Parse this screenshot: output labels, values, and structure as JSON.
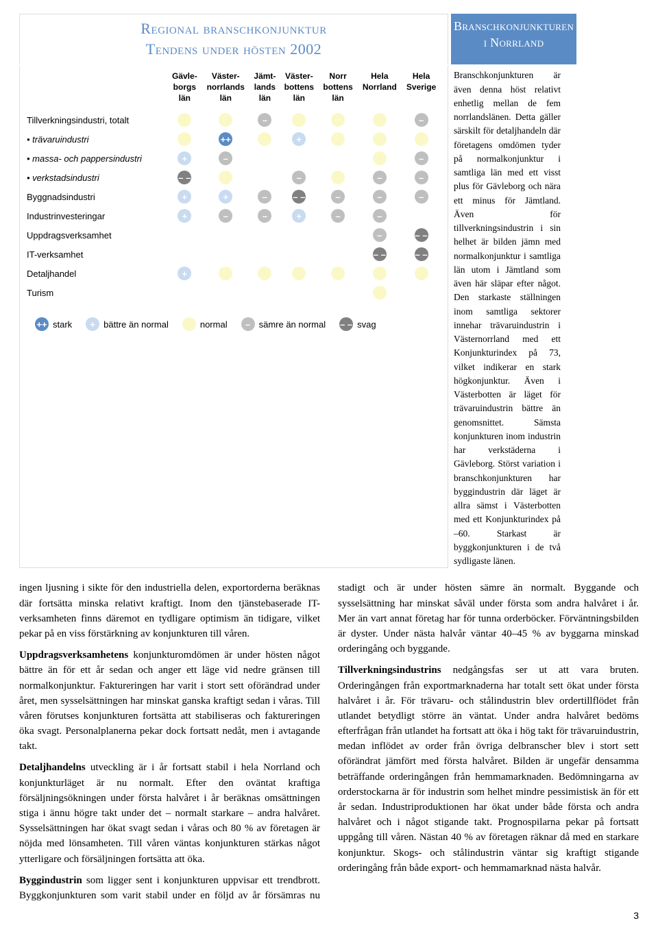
{
  "header_main_line1": "Regional branschkonjunktur",
  "header_main_line2": "Tendens under hösten 2002",
  "header_side_line1": "Branschkonjunkturen",
  "header_side_line2": "i Norrland",
  "table": {
    "columns": [
      {
        "l1": "Gävle-",
        "l2": "borgs",
        "l3": "län"
      },
      {
        "l1": "Väster-",
        "l2": "norrlands",
        "l3": "län"
      },
      {
        "l1": "Jämt-",
        "l2": "lands",
        "l3": "län"
      },
      {
        "l1": "Väster-",
        "l2": "bottens",
        "l3": "län"
      },
      {
        "l1": "Norr",
        "l2": "bottens",
        "l3": "län"
      },
      {
        "l1": "Hela",
        "l2": "Norrland",
        "l3": ""
      },
      {
        "l1": "Hela",
        "l2": "Sverige",
        "l3": ""
      }
    ],
    "rows": [
      {
        "label": "Tillverkningsindustri, totalt",
        "italic": false,
        "cells": [
          "normal",
          "normal",
          "samre",
          "normal",
          "normal",
          "normal",
          "samre"
        ]
      },
      {
        "label": "• trävaruindustri",
        "italic": true,
        "cells": [
          "normal",
          "stark",
          "normal",
          "battre",
          "normal",
          "normal",
          "normal"
        ]
      },
      {
        "label": "• massa- och pappersindustri",
        "italic": true,
        "cells": [
          "battre",
          "samre",
          "",
          "",
          "",
          "normal",
          "samre"
        ]
      },
      {
        "label": "• verkstadsindustri",
        "italic": true,
        "cells": [
          "svag",
          "normal",
          "",
          "samre",
          "normal",
          "samre",
          "samre"
        ]
      },
      {
        "label": "Byggnadsindustri",
        "italic": false,
        "cells": [
          "battre",
          "battre",
          "samre",
          "svag",
          "samre",
          "samre",
          "samre"
        ]
      },
      {
        "label": "Industrinvesteringar",
        "italic": false,
        "cells": [
          "battre",
          "samre",
          "samre",
          "battre",
          "samre",
          "samre",
          ""
        ]
      },
      {
        "label": "Uppdragsverksamhet",
        "italic": false,
        "cells": [
          "",
          "",
          "",
          "",
          "",
          "samre",
          "svag"
        ]
      },
      {
        "label": "IT-verksamhet",
        "italic": false,
        "cells": [
          "",
          "",
          "",
          "",
          "",
          "svag",
          "svag"
        ]
      },
      {
        "label": "Detaljhandel",
        "italic": false,
        "cells": [
          "battre",
          "normal",
          "normal",
          "normal",
          "normal",
          "normal",
          "normal"
        ]
      },
      {
        "label": "Turism",
        "italic": false,
        "cells": [
          "",
          "",
          "",
          "",
          "",
          "normal",
          ""
        ]
      }
    ]
  },
  "legend": {
    "items": [
      {
        "level": "stark",
        "label": "stark"
      },
      {
        "level": "battre",
        "label": "bättre än normal"
      },
      {
        "level": "normal",
        "label": "normal"
      },
      {
        "level": "samre",
        "label": "sämre än normal"
      },
      {
        "level": "svag",
        "label": "svag"
      }
    ]
  },
  "glyphs": {
    "stark": "++",
    "battre": "+",
    "normal": "",
    "samre": "–",
    "svag": "– –"
  },
  "colors": {
    "accent": "#5a8bc5",
    "stark": "#5a8bc5",
    "battre": "#c8dbf0",
    "normal": "#fbf8c8",
    "samre": "#bfbfbf",
    "svag": "#808080",
    "text": "#000000",
    "bg": "#ffffff"
  },
  "sidebar_text": "Branschkonjunkturen är även denna höst relativt enhetlig mellan de fem norrlandslänen. Detta gäller särskilt för detaljhandeln där företagens omdömen tyder på normalkonjunktur i samtliga län med ett visst plus för Gävleborg och nära ett minus för Jämtland. Även för tillverkningsindustrin i sin helhet är bilden jämn med normalkonjunktur i samtliga län utom i Jämtland som även här släpar efter något. Den starkaste ställningen inom samtliga sektorer innehar trävaruindustrin i Västernorrland med ett Konjunkturindex på 73, vilket indikerar en stark högkonjunktur. Även i Västerbotten är läget för trävaruindustrin bättre än genomsnittet. Sämsta konjunkturen inom industrin har verkstäderna i Gävleborg. Störst variation i branschkonjunkturen har byggindustrin där läget är allra sämst i Västerbotten med ett Konjunkturindex på –60. Starkast är byggkonjunkturen i de två sydligaste länen.",
  "body_paragraphs": [
    "ingen ljusning i sikte för den industriella delen, exportorderna beräknas där fortsätta minska relativt kraftigt. Inom den tjänstebaserade IT-verksamheten finns däremot en tydligare optimism än tidigare, vilket pekar på en viss förstärkning av konjunkturen till våren.",
    "<b>Uppdragsverksamhetens</b> konjunkturomdömen är under hösten något bättre än för ett år sedan och anger ett läge vid nedre gränsen till normalkonjunktur. Faktureringen har varit i stort sett oförändrad under året, men sysselsättningen har minskat ganska kraftigt sedan i våras. Till våren förutses konjunkturen fortsätta att stabiliseras och faktureringen öka svagt. Personalplanerna pekar dock fortsatt nedåt, men i avtagande takt.",
    "<b>Detaljhandelns</b> utveckling är i år fortsatt stabil i hela Norrland och konjunkturläget är nu normalt. Efter den oväntat kraftiga försäljningsökningen under första halvåret i år beräknas omsättningen stiga i ännu högre takt under det – normalt starkare – andra halvåret. Sysselsättningen har ökat svagt sedan i våras och 80 % av företagen är nöjda med lönsamheten. Till våren väntas konjunkturen stärkas något ytterligare och försäljningen fortsätta att öka.",
    "<b>Byggindustrin</b> som ligger sent i konjunkturen uppvisar ett trendbrott. Byggkonjunkturen som varit stabil under en följd av år försämras nu stadigt och är under hösten sämre än normalt. Byggande och sysselsättning har minskat såväl under första som andra halvåret i år. Mer än vart annat företag har för tunna orderböcker. Förväntningsbilden är dyster. Under nästa halvår väntar 40–45 % av byggarna minskad orderingång och byggande.",
    "<b>Tillverkningsindustrins</b> nedgångsfas ser ut att vara bruten. Orderingången från exportmarknaderna har totalt sett ökat under första halvåret i år. För trävaru- och stålindustrin blev ordertillflödet från utlandet betydligt större än väntat. Under andra halvåret bedöms efterfrågan från utlandet ha fortsatt att öka i hög takt för trävaruindustrin, medan inflödet av order från övriga delbranscher blev i stort sett oförändrat jämfört med första halvåret. Bilden är ungefär densamma beträffande orderingången från hemmamarknaden. Bedömningarna av orderstockarna är för industrin som helhet mindre pessimistisk än för ett år sedan. Industriproduktionen har ökat under både första och andra halvåret och i något stigande takt. Prognospilarna pekar på fortsatt uppgång till våren. Nästan 40 % av företagen räknar då med en starkare konjunktur. Skogs- och stålindustrin väntar sig kraftigt stigande orderingång från både export- och hemmamarknad nästa halvår."
  ],
  "page_number": "3"
}
